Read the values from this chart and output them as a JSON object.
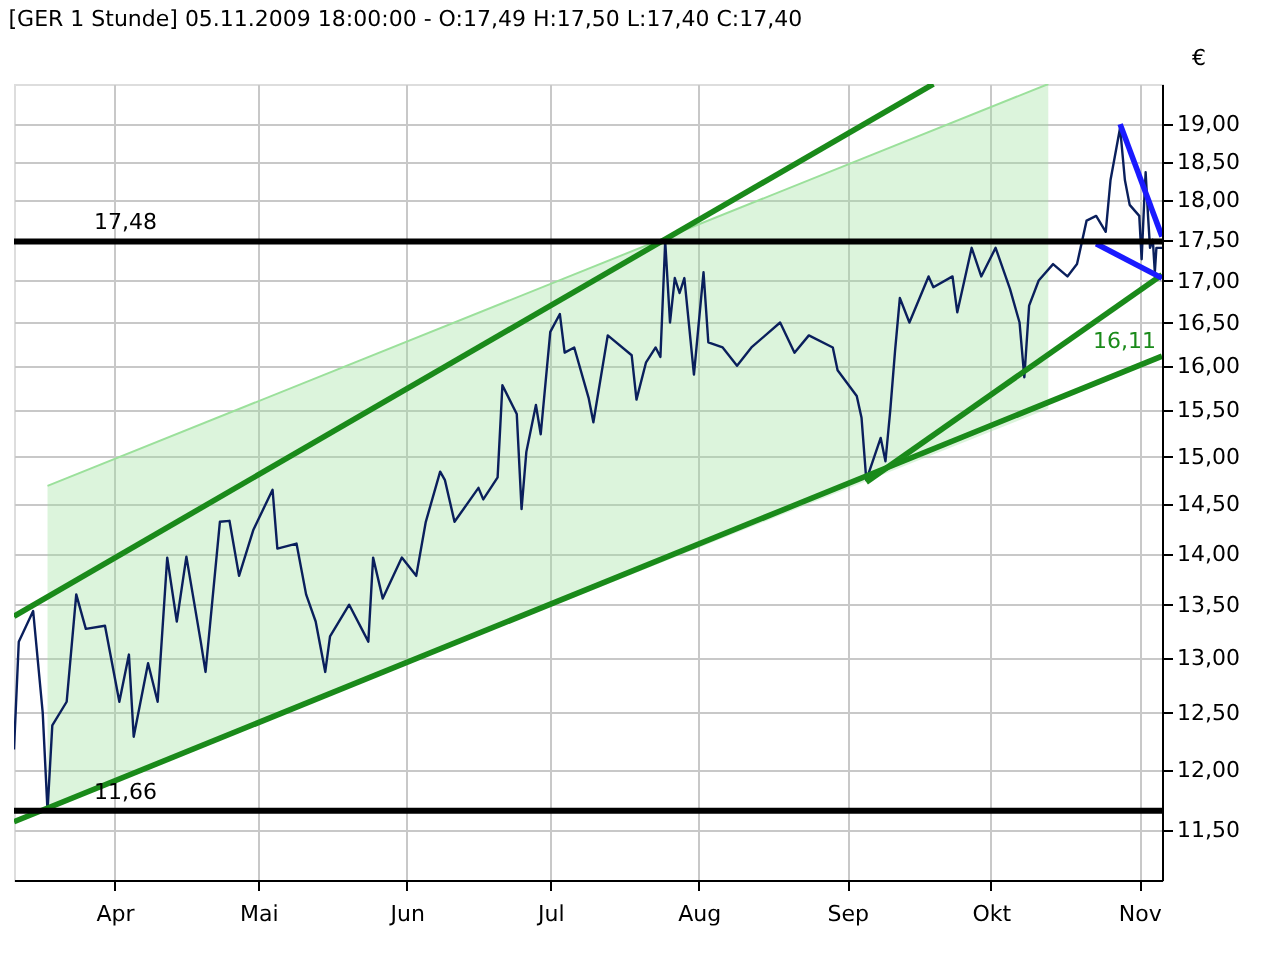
{
  "chart_data": {
    "type": "line",
    "title": "[GER 1 Stunde] 05.11.2009 18:00:00 - O:17,49 H:17,50 L:17,40 C:17,40",
    "ylabel": "€",
    "log": "y",
    "grid": true,
    "xlim": [
      "2009-03-11",
      "2009-11-05T18:00"
    ],
    "xticks": [
      {
        "value": "2009-04-01",
        "label": "Apr"
      },
      {
        "value": "2009-05-01",
        "label": "Mai"
      },
      {
        "value": "2009-06-01",
        "label": "Jun"
      },
      {
        "value": "2009-07-01",
        "label": "Jul"
      },
      {
        "value": "2009-08-01",
        "label": "Aug"
      },
      {
        "value": "2009-09-01",
        "label": "Sep"
      },
      {
        "value": "2009-10-01",
        "label": "Okt"
      },
      {
        "value": "2009-11-01",
        "label": "Nov"
      }
    ],
    "ylim": [
      11.1,
      19.55
    ],
    "yticks": [
      {
        "value": 11.5,
        "label": "11,50"
      },
      {
        "value": 12,
        "label": "12,00"
      },
      {
        "value": 12.5,
        "label": "12,50"
      },
      {
        "value": 13,
        "label": "13,00"
      },
      {
        "value": 13.5,
        "label": "13,50"
      },
      {
        "value": 14,
        "label": "14,00"
      },
      {
        "value": 14.5,
        "label": "14,50"
      },
      {
        "value": 15,
        "label": "15,00"
      },
      {
        "value": 15.5,
        "label": "15,50"
      },
      {
        "value": 16,
        "label": "16,00"
      },
      {
        "value": 16.5,
        "label": "16,50"
      },
      {
        "value": 17,
        "label": "17,00"
      },
      {
        "value": 17.5,
        "label": "17,50"
      },
      {
        "value": 18,
        "label": "18,00"
      },
      {
        "value": 18.5,
        "label": "18,50"
      },
      {
        "value": 19,
        "label": "19,00"
      }
    ],
    "ref_lines": [
      {
        "axis": "y",
        "value": 17.48,
        "label": "17,48",
        "color": "#000000"
      },
      {
        "axis": "y",
        "value": 11.66,
        "label": "11,66",
        "color": "#000000"
      }
    ],
    "annotations": [
      {
        "text": "16,11",
        "x": "2009-11-05T18:00",
        "y": 16.11
      }
    ],
    "series": [
      {
        "color": "#9be09b",
        "x": [
          "2009-03-18",
          "2009-10-13"
        ],
        "values": [
          14.69,
          19.55
        ],
        "lower": [
          11.69,
          15.52
        ],
        "upper": [
          14.69,
          19.55
        ]
      },
      {
        "color": "#0a1f5c",
        "x": [
          "2009-03-11",
          "2009-03-12",
          "2009-03-15",
          "2009-03-17",
          "2009-03-18",
          "2009-03-19",
          "2009-03-22",
          "2009-03-24",
          "2009-03-26",
          "2009-03-30",
          "2009-04-02",
          "2009-04-04",
          "2009-04-05",
          "2009-04-08",
          "2009-04-10",
          "2009-04-12",
          "2009-04-14",
          "2009-04-16",
          "2009-04-19",
          "2009-04-20",
          "2009-04-23",
          "2009-04-25",
          "2009-04-27",
          "2009-04-30",
          "2009-05-04",
          "2009-05-05",
          "2009-05-09",
          "2009-05-11",
          "2009-05-13",
          "2009-05-15",
          "2009-05-16",
          "2009-05-20",
          "2009-05-24",
          "2009-05-25",
          "2009-05-27",
          "2009-05-31",
          "2009-06-03",
          "2009-06-05",
          "2009-06-08",
          "2009-06-09",
          "2009-06-11",
          "2009-06-16",
          "2009-06-17",
          "2009-06-20",
          "2009-06-21",
          "2009-06-24",
          "2009-06-25",
          "2009-06-26",
          "2009-06-28",
          "2009-06-29",
          "2009-07-01",
          "2009-07-03",
          "2009-07-04",
          "2009-07-06",
          "2009-07-09",
          "2009-07-10",
          "2009-07-13",
          "2009-07-18",
          "2009-07-19",
          "2009-07-21",
          "2009-07-23",
          "2009-07-24",
          "2009-07-25",
          "2009-07-26",
          "2009-07-27",
          "2009-07-28",
          "2009-07-29",
          "2009-07-31",
          "2009-08-02",
          "2009-08-03",
          "2009-08-06",
          "2009-08-09",
          "2009-08-12",
          "2009-08-18",
          "2009-08-21",
          "2009-08-24",
          "2009-08-29",
          "2009-08-30",
          "2009-09-03",
          "2009-09-04",
          "2009-09-05",
          "2009-09-08",
          "2009-09-09",
          "2009-09-10",
          "2009-09-11",
          "2009-09-12",
          "2009-09-14",
          "2009-09-18",
          "2009-09-19",
          "2009-09-23",
          "2009-09-24",
          "2009-09-27",
          "2009-09-29",
          "2009-10-02",
          "2009-10-05",
          "2009-10-07",
          "2009-10-08",
          "2009-10-09",
          "2009-10-11",
          "2009-10-14",
          "2009-10-17",
          "2009-10-19",
          "2009-10-21",
          "2009-10-23",
          "2009-10-25",
          "2009-10-26",
          "2009-10-28",
          "2009-10-29",
          "2009-10-30",
          "2009-11-01",
          "2009-11-01T12:00",
          "2009-11-02",
          "2009-11-02T08:00",
          "2009-11-02T20:00",
          "2009-11-03T06:00",
          "2009-11-03T20:00",
          "2009-11-04T06:00",
          "2009-11-04T14:00",
          "2009-11-05T18:00"
        ],
        "values": [
          12.18,
          13.15,
          13.44,
          12.5,
          11.66,
          12.39,
          12.6,
          13.6,
          13.27,
          13.3,
          12.6,
          13.03,
          12.29,
          12.95,
          12.6,
          13.96,
          13.34,
          13.97,
          13.15,
          12.87,
          14.32,
          14.33,
          13.78,
          14.24,
          14.65,
          14.05,
          14.1,
          13.6,
          13.34,
          12.87,
          13.2,
          13.5,
          13.15,
          13.96,
          13.56,
          13.96,
          13.78,
          14.32,
          14.84,
          14.75,
          14.32,
          14.67,
          14.55,
          14.78,
          15.78,
          15.46,
          14.45,
          15.05,
          15.56,
          15.24,
          16.39,
          16.6,
          16.15,
          16.21,
          15.64,
          15.37,
          16.35,
          16.12,
          15.62,
          16.04,
          16.21,
          16.1,
          17.48,
          16.5,
          17.03,
          16.85,
          17.03,
          15.9,
          17.1,
          16.27,
          16.21,
          16.0,
          16.21,
          16.5,
          16.15,
          16.35,
          16.21,
          15.95,
          15.66,
          15.42,
          14.75,
          15.2,
          14.95,
          15.5,
          16.17,
          16.79,
          16.5,
          17.05,
          16.92,
          17.05,
          16.62,
          17.4,
          17.05,
          17.4,
          16.9,
          16.5,
          15.87,
          16.7,
          17.0,
          17.2,
          17.05,
          17.2,
          17.74,
          17.8,
          17.6,
          18.26,
          18.95,
          18.26,
          17.94,
          17.8,
          17.26,
          17.94,
          18.36,
          17.8,
          17.4,
          17.5,
          17.1,
          17.4,
          17.4
        ]
      },
      {
        "color": "#1a8a1a",
        "x": [
          "2009-03-11",
          "2009-09-19"
        ],
        "values": [
          13.39,
          19.55
        ]
      },
      {
        "color": "#1a8a1a",
        "x": [
          "2009-03-11",
          "2009-11-05T18:00"
        ],
        "values": [
          11.57,
          16.11
        ]
      },
      {
        "color": "#1a8a1a",
        "x": [
          "2009-09-05",
          "2009-11-05T18:00"
        ],
        "values": [
          14.73,
          17.07
        ]
      },
      {
        "color": "#1a1aff",
        "x": [
          "2009-10-28",
          "2009-11-05T18:00"
        ],
        "values": [
          19.0,
          17.54
        ]
      },
      {
        "color": "#1a1aff",
        "x": [
          "2009-10-23",
          "2009-11-05T18:00"
        ],
        "values": [
          17.45,
          17.03
        ]
      }
    ]
  }
}
